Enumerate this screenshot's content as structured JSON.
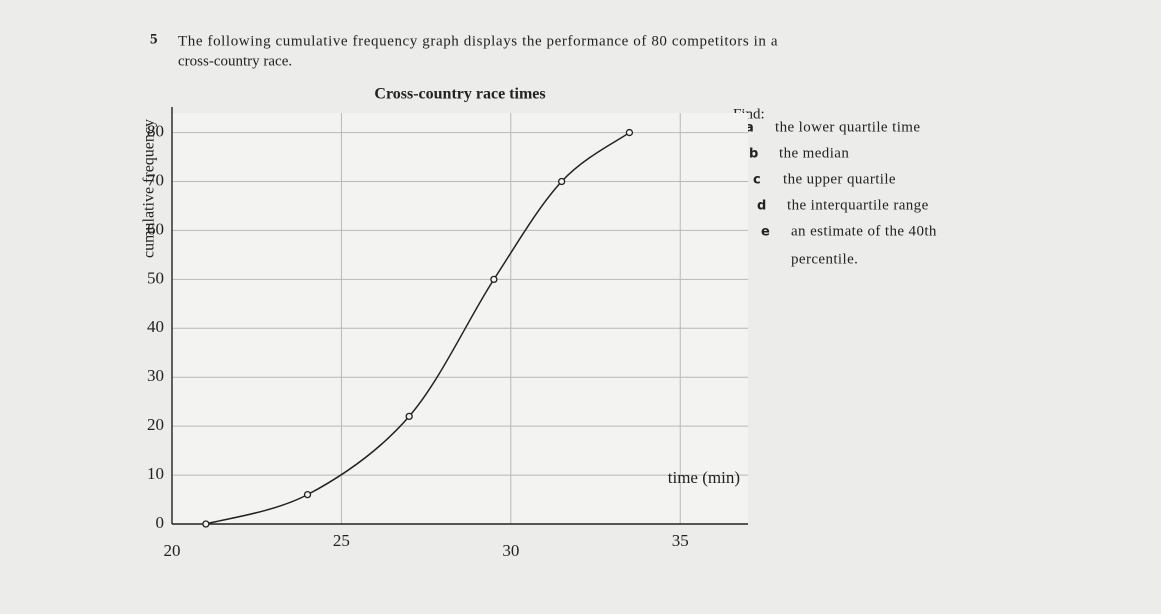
{
  "question": {
    "number": "5",
    "lines": [
      "The following cumulative frequency graph displays the performance of 80 competitors in a",
      "cross-country race."
    ]
  },
  "find": {
    "heading": "Find:",
    "items": [
      {
        "letter": "a",
        "lines": [
          "the lower quartile time"
        ]
      },
      {
        "letter": "b",
        "lines": [
          "the median"
        ]
      },
      {
        "letter": "c",
        "lines": [
          "the upper quartile"
        ]
      },
      {
        "letter": "d",
        "lines": [
          "the interquartile range"
        ]
      },
      {
        "letter": "e",
        "lines": [
          "an estimate of the 40th",
          "percentile."
        ]
      }
    ]
  },
  "chart_data": {
    "type": "line",
    "title": "Cross-country race times",
    "x_label": "time (min)",
    "y_label": "cumulative frequency",
    "x": [
      21,
      24,
      27,
      29.5,
      31.5,
      33.5
    ],
    "values": [
      0,
      6,
      22,
      50,
      70,
      80
    ],
    "color": "#222222",
    "markers": true,
    "xlim": [
      20,
      37
    ],
    "ylim": [
      0,
      84
    ],
    "xticks": [
      20,
      25,
      30,
      35
    ],
    "yticks": [
      0,
      10,
      20,
      30,
      40,
      50,
      60,
      70,
      80
    ],
    "grid": true
  }
}
